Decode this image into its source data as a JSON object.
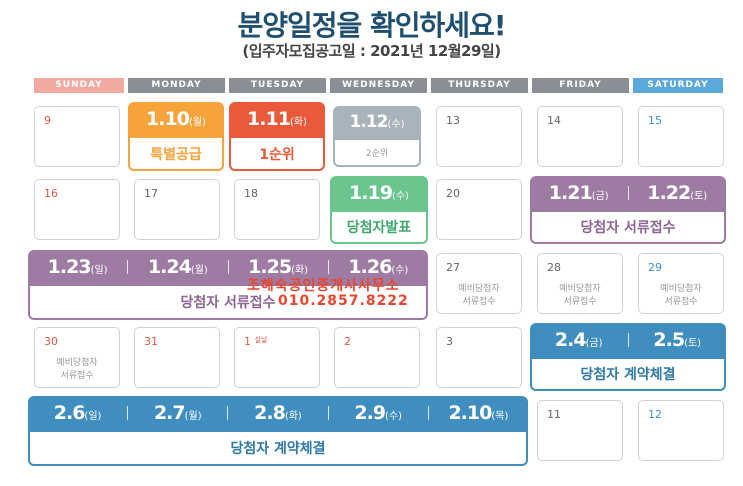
{
  "title": "분양일정을 확인하세요!",
  "subtitle": "(입주자모집공고일 : 2021년 12월29일)",
  "weekdays": [
    "SUNDAY",
    "MONDAY",
    "TUESDAY",
    "WEDNESDAY",
    "THURSDAY",
    "FRIDAY",
    "SATURDAY"
  ],
  "days": {
    "d9": "9",
    "d13": "13",
    "d14": "14",
    "d15": "15",
    "d16": "16",
    "d17": "17",
    "d18": "18",
    "d20": "20",
    "d27": "27",
    "d28": "28",
    "d29": "29",
    "d30": "30",
    "d31": "31",
    "d1": "1",
    "d1_note": "설날",
    "d2": "2",
    "d3": "3",
    "d11": "11",
    "d12": "12"
  },
  "pre_winner_docs": "예비당첨자\n서류접수",
  "events": {
    "special": {
      "date": "1.10",
      "dow": "(월)",
      "label": "특별공급",
      "color": "#f5a33a"
    },
    "first": {
      "date": "1.11",
      "dow": "(화)",
      "label": "1순위",
      "color": "#ea5a3a"
    },
    "second": {
      "date": "1.12",
      "dow": "(수)",
      "label": "2순위",
      "color": "#a9b3bb"
    },
    "announce": {
      "date": "1.19",
      "dow": "(수)",
      "label": "당첨자발표",
      "color": "#69c48e"
    },
    "docs_a": {
      "dates": [
        {
          "d": "1.21",
          "w": "(금)"
        },
        {
          "d": "1.22",
          "w": "(토)"
        }
      ],
      "label": "당첨자 서류접수",
      "color": "#9e7ba3"
    },
    "docs_b": {
      "dates": [
        {
          "d": "1.23",
          "w": "(일)"
        },
        {
          "d": "1.24",
          "w": "(월)"
        },
        {
          "d": "1.25",
          "w": "(화)"
        },
        {
          "d": "1.26",
          "w": "(수)"
        }
      ],
      "label": "당첨자 서류접수",
      "color": "#9e7ba3"
    },
    "contract_a": {
      "dates": [
        {
          "d": "2.4",
          "w": "(금)"
        },
        {
          "d": "2.5",
          "w": "(토)"
        }
      ],
      "label": "당첨자 계약체결",
      "color": "#3f8ebf"
    },
    "contract_b": {
      "dates": [
        {
          "d": "2.6",
          "w": "(일)"
        },
        {
          "d": "2.7",
          "w": "(월)"
        },
        {
          "d": "2.8",
          "w": "(화)"
        },
        {
          "d": "2.9",
          "w": "(수)"
        },
        {
          "d": "2.10",
          "w": "(목)"
        }
      ],
      "label": "당첨자 계약체결",
      "color": "#3f8ebf"
    }
  },
  "watermark": {
    "line1": "조해숙공인중개사사무소",
    "line2": "010.2857.8222"
  }
}
